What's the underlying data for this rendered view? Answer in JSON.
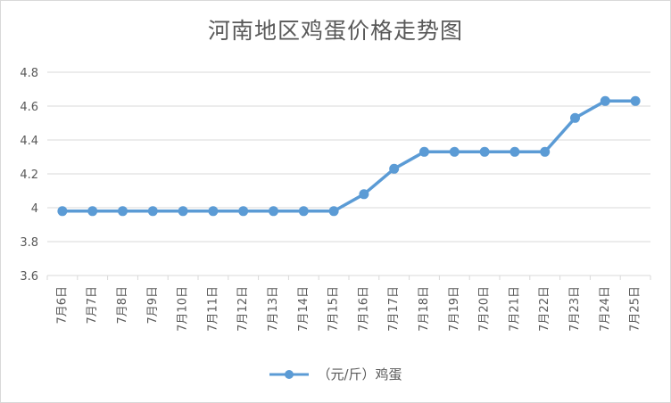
{
  "chart_data": {
    "type": "line",
    "title": "河南地区鸡蛋价格走势图",
    "categories": [
      "7月6日",
      "7月7日",
      "7月8日",
      "7月9日",
      "7月10日",
      "7月11日",
      "7月12日",
      "7月13日",
      "7月14日",
      "7月15日",
      "7月16日",
      "7月17日",
      "7月18日",
      "7月19日",
      "7月20日",
      "7月21日",
      "7月22日",
      "7月23日",
      "7月24日",
      "7月25日"
    ],
    "series": [
      {
        "name": "（元/斤）鸡蛋",
        "values": [
          3.98,
          3.98,
          3.98,
          3.98,
          3.98,
          3.98,
          3.98,
          3.98,
          3.98,
          3.98,
          4.08,
          4.23,
          4.33,
          4.33,
          4.33,
          4.33,
          4.33,
          4.53,
          4.63,
          4.63
        ],
        "color": "#5b9bd5"
      }
    ],
    "ylim": [
      3.6,
      4.8
    ],
    "yticks": [
      3.6,
      3.8,
      4,
      4.2,
      4.4,
      4.6,
      4.8
    ],
    "ytick_labels": [
      "3.6",
      "3.8",
      "4",
      "4.2",
      "4.4",
      "4.6",
      "4.8"
    ],
    "xlabel": "",
    "ylabel": "",
    "grid": true,
    "legend_position": "bottom",
    "gridline_color": "#d9d9d9"
  }
}
